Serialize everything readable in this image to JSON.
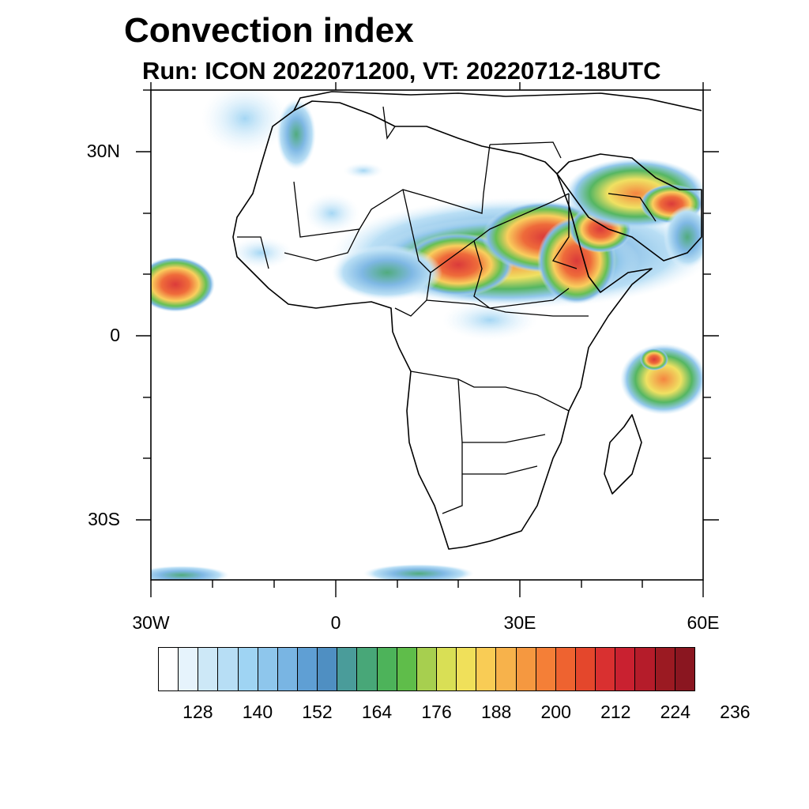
{
  "title": "Convection index",
  "subtitle": "Run: ICON 2022071200,  VT: 20220712-18UTC",
  "lat_labels": [
    "30N",
    "0",
    "30S"
  ],
  "lon_labels": [
    "30W",
    "0",
    "30E",
    "60E"
  ],
  "legend": {
    "colors": [
      "#ffffff",
      "#e6f3fc",
      "#cde8f7",
      "#b7def5",
      "#9fd4f3",
      "#8ec6ec",
      "#79b5e3",
      "#5f9fd4",
      "#4f8fc2",
      "#4a9c9a",
      "#48a778",
      "#4db35a",
      "#5fbd4a",
      "#a7cf4f",
      "#d9df55",
      "#f0e05a",
      "#f9cc55",
      "#f7b24b",
      "#f59840",
      "#f47f37",
      "#ee6330",
      "#e4472c",
      "#d93030",
      "#c92130",
      "#b51c2a",
      "#9b1a22",
      "#8a1620"
    ],
    "labels": [
      "128",
      "140",
      "152",
      "164",
      "176",
      "188",
      "200",
      "212",
      "224",
      "236"
    ]
  }
}
